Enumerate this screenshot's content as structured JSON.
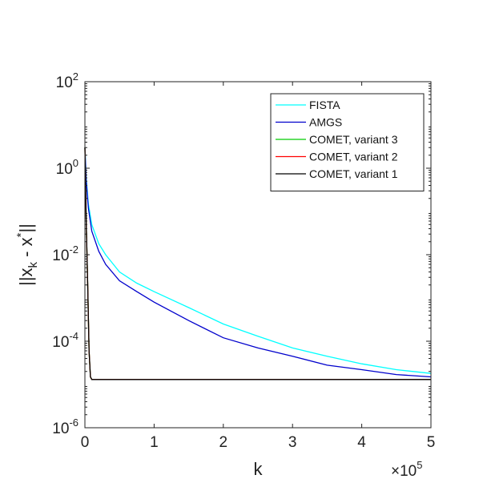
{
  "chart_data": {
    "type": "line",
    "xlabel": "k",
    "ylabel": "||x_k - x^*||",
    "x_exponent_label": "×10",
    "x_exponent": "5",
    "xlim": [
      0,
      5
    ],
    "ylim": [
      1e-06,
      100
    ],
    "yscale": "log",
    "x_ticks": [
      0,
      1,
      2,
      3,
      4,
      5
    ],
    "y_ticks": [
      {
        "value": 1e-06,
        "base": "10",
        "exp": "-6"
      },
      {
        "value": 0.0001,
        "base": "10",
        "exp": "-4"
      },
      {
        "value": 0.01,
        "base": "10",
        "exp": "-2"
      },
      {
        "value": 1,
        "base": "10",
        "exp": "0"
      },
      {
        "value": 100,
        "base": "10",
        "exp": "2"
      }
    ],
    "grid": false,
    "legend_position": "top-right",
    "series": [
      {
        "name": "FISTA",
        "color": "#00ffff",
        "x": [
          0,
          0.02,
          0.05,
          0.1,
          0.2,
          0.3,
          0.5,
          0.75,
          1,
          1.5,
          2,
          2.5,
          3,
          3.5,
          4,
          4.5,
          5
        ],
        "y": [
          3,
          0.6,
          0.15,
          0.05,
          0.018,
          0.01,
          0.004,
          0.0022,
          0.0014,
          0.0006,
          0.00025,
          0.00013,
          7e-05,
          4.5e-05,
          3e-05,
          2.2e-05,
          1.8e-05
        ]
      },
      {
        "name": "AMGS",
        "color": "#0000cc",
        "x": [
          0,
          0.02,
          0.05,
          0.1,
          0.2,
          0.3,
          0.5,
          0.75,
          1,
          1.5,
          2,
          2.5,
          3,
          3.5,
          4,
          4.5,
          5
        ],
        "y": [
          3,
          0.5,
          0.12,
          0.035,
          0.012,
          0.006,
          0.0025,
          0.0014,
          0.0008,
          0.0003,
          0.00012,
          7e-05,
          4.5e-05,
          2.8e-05,
          2.2e-05,
          1.7e-05,
          1.5e-05
        ]
      },
      {
        "name": "COMET, variant 3",
        "color": "#00cc00",
        "x": [
          0,
          0.02,
          0.04,
          0.06,
          0.08,
          0.1,
          0.5,
          1,
          2,
          3,
          4,
          5
        ],
        "y": [
          3,
          0.05,
          0.002,
          6e-05,
          1.5e-05,
          1.3e-05,
          1.3e-05,
          1.3e-05,
          1.3e-05,
          1.3e-05,
          1.3e-05,
          1.3e-05
        ]
      },
      {
        "name": "COMET, variant 2",
        "color": "#ff0000",
        "x": [
          0,
          0.02,
          0.04,
          0.06,
          0.08,
          0.1,
          0.5,
          1,
          2,
          3,
          4,
          5
        ],
        "y": [
          3,
          0.05,
          0.002,
          6e-05,
          1.5e-05,
          1.3e-05,
          1.3e-05,
          1.3e-05,
          1.3e-05,
          1.3e-05,
          1.3e-05,
          1.3e-05
        ]
      },
      {
        "name": "COMET, variant 1",
        "color": "#000000",
        "x": [
          0,
          0.02,
          0.04,
          0.06,
          0.08,
          0.1,
          0.5,
          1,
          2,
          3,
          4,
          5
        ],
        "y": [
          3,
          0.05,
          0.002,
          6e-05,
          1.5e-05,
          1.3e-05,
          1.3e-05,
          1.3e-05,
          1.3e-05,
          1.3e-05,
          1.3e-05,
          1.3e-05
        ]
      }
    ]
  }
}
